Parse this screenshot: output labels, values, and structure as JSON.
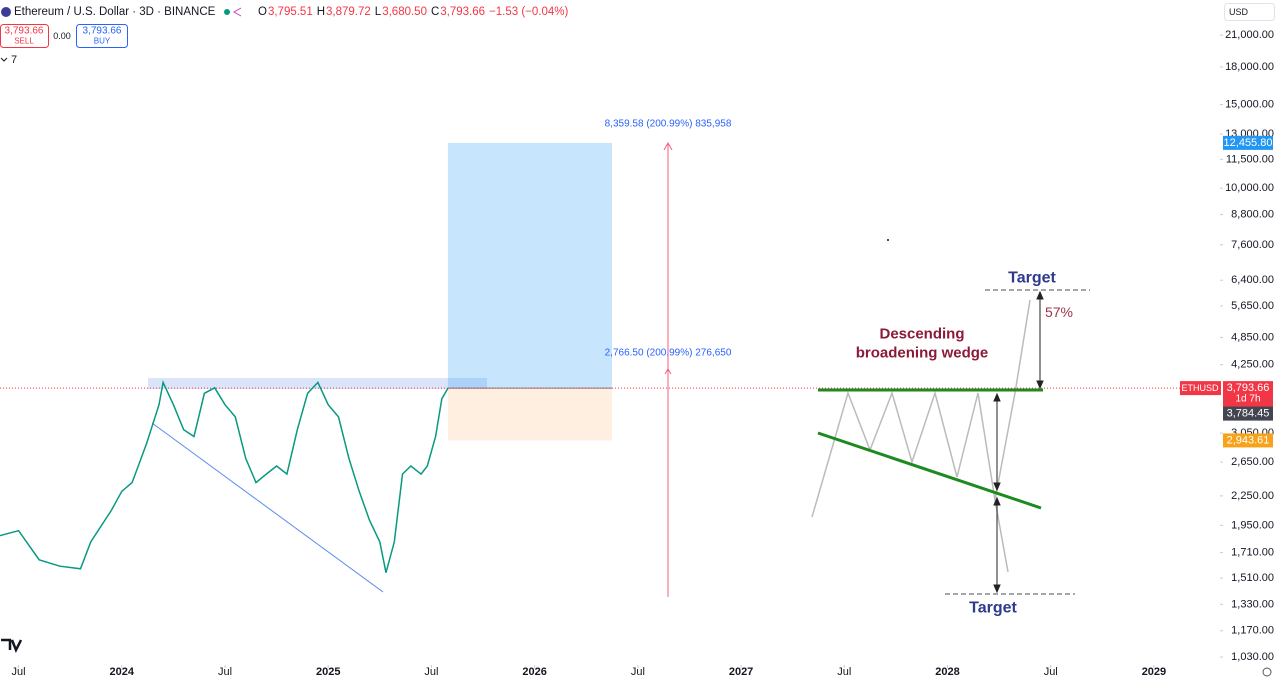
{
  "header": {
    "symbol": "Ethereum / U.S. Dollar · 3D · BINANCE",
    "ohlc": [
      {
        "key": "O",
        "value": "3,795.51"
      },
      {
        "key": "H",
        "value": "3,879.72"
      },
      {
        "key": "L",
        "value": "3,680.50"
      },
      {
        "key": "C",
        "value": "3,793.66"
      }
    ],
    "change": "−1.53 (−0.04%)",
    "sell": {
      "price": "3,793.66",
      "label": "SELL"
    },
    "spread": "0.00",
    "buy": {
      "price": "3,793.66",
      "label": "BUY"
    },
    "indicators_count": "7",
    "currency": "USD"
  },
  "chart_data": {
    "type": "line",
    "color": "#089981",
    "log_scale": true,
    "x": [
      2023.4,
      2023.5,
      2023.6,
      2023.7,
      2023.8,
      2023.85,
      2023.95,
      2024.0,
      2024.05,
      2024.12,
      2024.18,
      2024.2,
      2024.25,
      2024.3,
      2024.35,
      2024.4,
      2024.45,
      2024.5,
      2024.55,
      2024.6,
      2024.65,
      2024.7,
      2024.75,
      2024.8,
      2024.85,
      2024.9,
      2024.95,
      2025.0,
      2025.05,
      2025.1,
      2025.15,
      2025.2,
      2025.25,
      2025.28,
      2025.32,
      2025.36,
      2025.4,
      2025.45,
      2025.48,
      2025.52,
      2025.55,
      2025.58
    ],
    "values": [
      1850,
      1900,
      1650,
      1600,
      1580,
      1800,
      2100,
      2300,
      2400,
      2900,
      3500,
      3900,
      3500,
      3100,
      3000,
      3700,
      3800,
      3500,
      3300,
      2700,
      2400,
      2500,
      2600,
      2500,
      3100,
      3700,
      3900,
      3500,
      3300,
      2700,
      2300,
      2000,
      1800,
      1550,
      1800,
      2500,
      2600,
      2500,
      2600,
      3000,
      3600,
      3793.66
    ],
    "xlim": [
      2023.41,
      2029.32
    ],
    "xticks": [
      {
        "value": 2023.5,
        "label": "Jul"
      },
      2024,
      {
        "value": 2024.5,
        "label": "Jul"
      },
      2025,
      {
        "value": 2025.5,
        "label": "Jul"
      },
      2026,
      {
        "value": 2026.5,
        "label": "Jul"
      },
      2027,
      {
        "value": 2027.5,
        "label": "Jul"
      },
      2028,
      {
        "value": 2028.5,
        "label": "Jul"
      },
      2029
    ],
    "ylim": [
      991,
      24900
    ],
    "yticks": [
      {
        "value": 21000,
        "label": "21,000.00"
      },
      {
        "value": 18000,
        "label": "18,000.00"
      },
      {
        "value": 15000,
        "label": "15,000.00"
      },
      {
        "value": 13000,
        "label": "13,000.00"
      },
      {
        "value": 11500,
        "label": "11,500.00"
      },
      {
        "value": 10000,
        "label": "10,000.00"
      },
      {
        "value": 8800,
        "label": "8,800.00"
      },
      {
        "value": 7600,
        "label": "7,600.00"
      },
      {
        "value": 6400,
        "label": "6,400.00"
      },
      {
        "value": 5650,
        "label": "5,650.00"
      },
      {
        "value": 4850,
        "label": "4,850.00"
      },
      {
        "value": 4250,
        "label": "4,250.00"
      },
      {
        "value": 3050,
        "label": "3,050.00"
      },
      {
        "value": 2650,
        "label": "2,650.00"
      },
      {
        "value": 2250,
        "label": "2,250.00"
      },
      {
        "value": 1950,
        "label": "1,950.00"
      },
      {
        "value": 1710,
        "label": "1,710.00"
      },
      {
        "value": 1510,
        "label": "1,510.00"
      },
      {
        "value": 1330,
        "label": "1,330.00"
      },
      {
        "value": 1170,
        "label": "1,170.00"
      },
      {
        "value": 1030,
        "label": "1,030.00"
      }
    ],
    "price_tags": [
      {
        "value": 12455.8,
        "label": "12,455.80",
        "color": "#2196f3"
      },
      {
        "value": 3793.66,
        "label": "3,793.66",
        "symbol": "ETHUSD",
        "countdown": "1d 7h",
        "color": "#f23645"
      },
      {
        "value": 3784.45,
        "label": "3,784.45",
        "color": "#434651"
      },
      {
        "value": 2943.61,
        "label": "2,943.61",
        "color": "#f7a21b"
      }
    ],
    "annotations": {
      "target_stats": "8,359.58 (200.99%) 835,958",
      "stop_stats": "2,766.50 (200.99%) 276,650"
    }
  },
  "diagram": {
    "title_line1": "Descending",
    "title_line2": "broadening wedge",
    "upper_target": "Target",
    "lower_target": "Target",
    "gain": "57%"
  }
}
